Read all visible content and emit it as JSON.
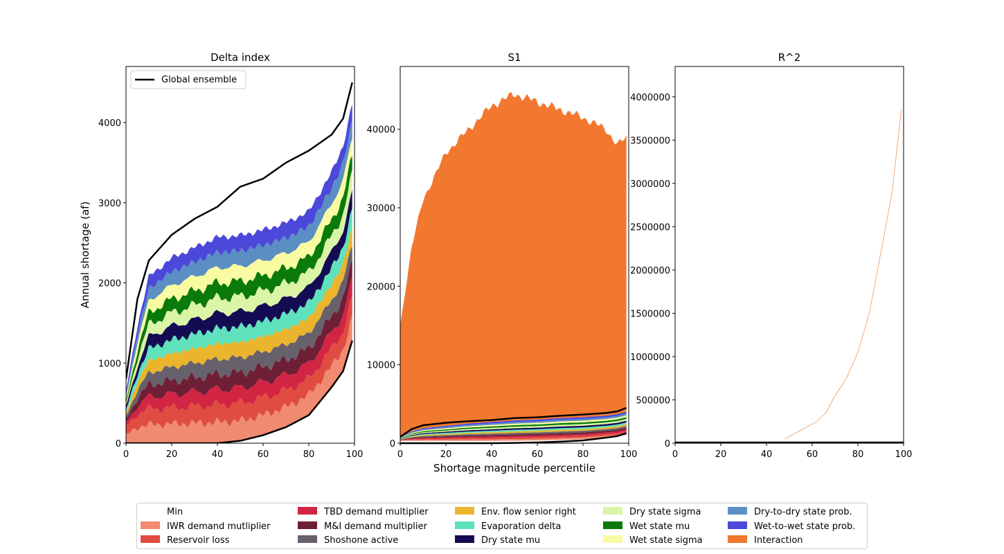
{
  "figure": {
    "ylabel": "Annual shortage (af)",
    "xlabel": "Shortage magnitude percentile"
  },
  "colors": {
    "Min": "#ffffff",
    "IWR demand mutliplier": "#f08a70",
    "Reservoir loss": "#e04c40",
    "TBD demand multiplier": "#d12543",
    "M&I demand multiplier": "#6e1f36",
    "Shoshone active": "#67616b",
    "Env. flow senior right": "#eab52d",
    "Evaporation delta": "#5fe2bc",
    "Dry state mu": "#130c52",
    "Dry state sigma": "#daf5a6",
    "Wet state mu": "#0a7a0a",
    "Wet state sigma": "#f8fba1",
    "Dry-to-dry state prob.": "#5b8ec3",
    "Wet-to-wet state prob.": "#4c48da",
    "Interaction": "#f27830",
    "ensemble_line": "#000000"
  },
  "chart_data": [
    {
      "type": "area",
      "title": "Delta index",
      "xlabel": "",
      "ylabel": "Annual shortage (af)",
      "xlim": [
        0,
        100
      ],
      "ylim": [
        0,
        4700
      ],
      "xticks": [
        "0",
        "20",
        "40",
        "60",
        "80",
        "100"
      ],
      "yticks": [
        "0",
        "1000",
        "2000",
        "3000",
        "4000"
      ],
      "ytick_values": [
        0,
        1000,
        2000,
        3000,
        4000
      ],
      "legend": {
        "placement": "top-left",
        "label": "Global ensemble"
      },
      "x": [
        0,
        5,
        10,
        20,
        30,
        40,
        50,
        60,
        70,
        80,
        90,
        95,
        99
      ],
      "global_ensemble_min": [
        0,
        0,
        0,
        0,
        0,
        0,
        30,
        100,
        200,
        350,
        700,
        900,
        1280
      ],
      "global_ensemble_max": [
        800,
        1800,
        2280,
        2600,
        2800,
        2950,
        3200,
        3300,
        3500,
        3650,
        3850,
        4050,
        4500
      ],
      "series": [
        {
          "name": "Min",
          "values": [
            0,
            0,
            0,
            0,
            0,
            0,
            30,
            100,
            200,
            350,
            700,
            900,
            1280
          ]
        },
        {
          "name": "IWR demand mutliplier",
          "values": [
            100,
            200,
            230,
            240,
            250,
            260,
            250,
            250,
            250,
            250,
            260,
            270,
            280
          ]
        },
        {
          "name": "Reservoir loss",
          "values": [
            100,
            170,
            200,
            200,
            210,
            220,
            220,
            220,
            210,
            200,
            220,
            230,
            250
          ]
        },
        {
          "name": "TBD demand multiplier",
          "values": [
            50,
            100,
            150,
            170,
            180,
            190,
            190,
            190,
            190,
            190,
            200,
            210,
            220
          ]
        },
        {
          "name": "M&I demand multiplier",
          "values": [
            40,
            100,
            150,
            170,
            180,
            190,
            190,
            190,
            190,
            190,
            200,
            210,
            220
          ]
        },
        {
          "name": "Shoshone active",
          "values": [
            40,
            100,
            150,
            170,
            180,
            190,
            190,
            190,
            190,
            190,
            200,
            210,
            220
          ]
        },
        {
          "name": "Env. flow senior right",
          "values": [
            40,
            100,
            150,
            170,
            180,
            190,
            190,
            190,
            190,
            190,
            200,
            210,
            220
          ]
        },
        {
          "name": "Evaporation delta",
          "values": [
            40,
            100,
            150,
            170,
            180,
            190,
            190,
            190,
            190,
            190,
            200,
            210,
            220
          ]
        },
        {
          "name": "Dry state mu",
          "values": [
            40,
            100,
            150,
            170,
            180,
            190,
            190,
            190,
            190,
            190,
            200,
            210,
            220
          ]
        },
        {
          "name": "Dry state sigma",
          "values": [
            40,
            100,
            150,
            170,
            180,
            190,
            190,
            190,
            190,
            190,
            200,
            210,
            220
          ]
        },
        {
          "name": "Wet state mu",
          "values": [
            40,
            100,
            150,
            170,
            180,
            190,
            190,
            190,
            190,
            190,
            200,
            210,
            220
          ]
        },
        {
          "name": "Wet state sigma",
          "values": [
            40,
            100,
            150,
            170,
            180,
            190,
            190,
            190,
            190,
            190,
            200,
            210,
            220
          ]
        },
        {
          "name": "Dry-to-dry state prob.",
          "values": [
            40,
            100,
            150,
            170,
            180,
            190,
            190,
            190,
            190,
            190,
            200,
            210,
            220
          ]
        },
        {
          "name": "Wet-to-wet state prob.",
          "values": [
            40,
            100,
            150,
            170,
            180,
            190,
            190,
            190,
            190,
            190,
            200,
            210,
            220
          ]
        }
      ]
    },
    {
      "type": "area",
      "title": "S1",
      "xlabel": "Shortage magnitude percentile",
      "ylabel": "",
      "xlim": [
        0,
        100
      ],
      "ylim": [
        0,
        48000
      ],
      "xticks": [
        "0",
        "20",
        "40",
        "60",
        "80",
        "100"
      ],
      "yticks": [
        "0",
        "10000",
        "20000",
        "30000",
        "40000"
      ],
      "ytick_values": [
        0,
        10000,
        20000,
        30000,
        40000
      ],
      "x": [
        0,
        5,
        10,
        20,
        30,
        40,
        50,
        60,
        70,
        80,
        90,
        95,
        99
      ],
      "global_ensemble_min": [
        0,
        0,
        0,
        0,
        0,
        0,
        30,
        100,
        200,
        350,
        700,
        900,
        1280
      ],
      "global_ensemble_max": [
        800,
        1800,
        2280,
        2600,
        2800,
        2950,
        3200,
        3300,
        3500,
        3650,
        3850,
        4050,
        4500
      ],
      "stack_top": [
        800,
        1500,
        1900,
        2200,
        2500,
        2700,
        2900,
        3000,
        3200,
        3300,
        3500,
        3700,
        4000
      ],
      "series": [
        {
          "name": "Interaction",
          "upper": [
            15000,
            25000,
            31000,
            37000,
            40000,
            43000,
            44500,
            43500,
            42500,
            41500,
            40000,
            38000,
            39000
          ]
        }
      ]
    },
    {
      "type": "area",
      "title": "R^2",
      "xlabel": "",
      "ylabel": "",
      "xlim": [
        0,
        100
      ],
      "ylim": [
        0,
        4350000
      ],
      "xticks": [
        "0",
        "20",
        "40",
        "60",
        "80",
        "100"
      ],
      "yticks": [
        "0",
        "500000",
        "1000000",
        "1500000",
        "2000000",
        "2500000",
        "3000000",
        "3500000",
        "4000000"
      ],
      "ytick_values": [
        0,
        500000,
        1000000,
        1500000,
        2000000,
        2500000,
        3000000,
        3500000,
        4000000
      ],
      "x": [
        48,
        55,
        62,
        66,
        70,
        75,
        80,
        85,
        90,
        95,
        99
      ],
      "series": [
        {
          "name": "Interaction",
          "values": [
            50000,
            150000,
            250000,
            350000,
            550000,
            750000,
            1050000,
            1500000,
            2200000,
            2900000,
            3850000
          ]
        }
      ]
    }
  ],
  "legend": {
    "columns": [
      [
        "Min",
        "IWR demand mutliplier",
        "Reservoir loss"
      ],
      [
        "TBD demand multiplier",
        "M&I demand multiplier",
        "Shoshone active"
      ],
      [
        "Env. flow senior right",
        "Evaporation delta",
        "Dry state mu"
      ],
      [
        "Dry state sigma",
        "Wet state mu",
        "Wet state sigma"
      ],
      [
        "Dry-to-dry state prob.",
        "Wet-to-wet state prob.",
        "Interaction"
      ]
    ]
  }
}
